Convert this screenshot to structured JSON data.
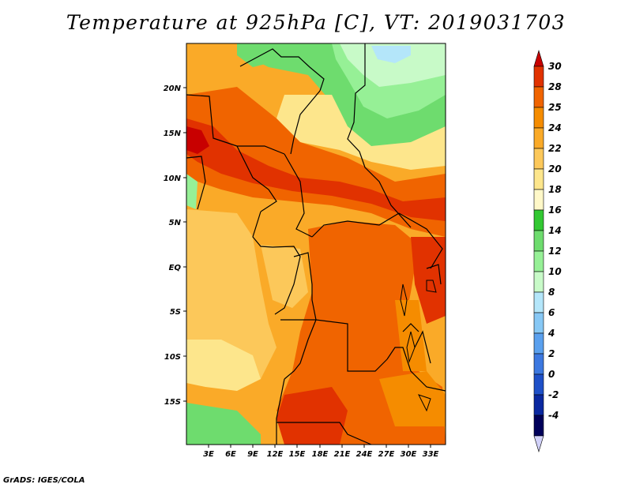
{
  "title": "Temperature at 925hPa [C], VT: 2019031703",
  "footer": "GrADS: IGES/COLA",
  "map": {
    "lat_labels": [
      "20N",
      "15N",
      "10N",
      "5N",
      "EQ",
      "5S",
      "10S",
      "15S"
    ],
    "lon_labels": [
      "3E",
      "6E",
      "9E",
      "12E",
      "15E",
      "18E",
      "21E",
      "24E",
      "27E",
      "30E",
      "33E"
    ]
  },
  "colorbar": {
    "labels": [
      "30",
      "28",
      "25",
      "24",
      "22",
      "20",
      "18",
      "16",
      "14",
      "12",
      "10",
      "8",
      "6",
      "4",
      "2",
      "0",
      "-2",
      "-4"
    ],
    "colors": [
      "#c80000",
      "#e13200",
      "#f06400",
      "#f58c00",
      "#faaa28",
      "#fcc85a",
      "#fde68c",
      "#fff8c8",
      "#32c832",
      "#6edc6e",
      "#96f096",
      "#c8fac8",
      "#b4e6fa",
      "#87c8f5",
      "#5aa0ee",
      "#3c78e0",
      "#1e50c8",
      "#0a28a0",
      "#00005a",
      "#d2d2fa"
    ]
  }
}
